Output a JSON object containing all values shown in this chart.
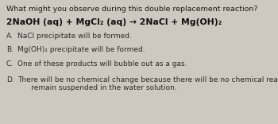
{
  "background_color": "#cfc8c0",
  "title": "What might you observe during this double replacement reaction?",
  "equation": "2NaOH (aq) + MgCl₂ (aq) → 2NaCl + Mg(OH)₂",
  "options": [
    {
      "label": "A.",
      "text": "NaCl precipitate will be formed."
    },
    {
      "label": "B.",
      "text": "Mg(OH)₂ precipitate will be formed."
    },
    {
      "label": "C.",
      "text": "One of these products will bubble out as a gas."
    },
    {
      "label": "D.",
      "text": "There will be no chemical change because there will be no chemical reaction; the ions will\n      remain suspended in the water solution."
    }
  ],
  "title_fontsize": 6.8,
  "equation_fontsize": 7.8,
  "option_fontsize": 6.5,
  "title_color": "#1a1a1a",
  "equation_color": "#111111",
  "option_color": "#2a2a2a"
}
